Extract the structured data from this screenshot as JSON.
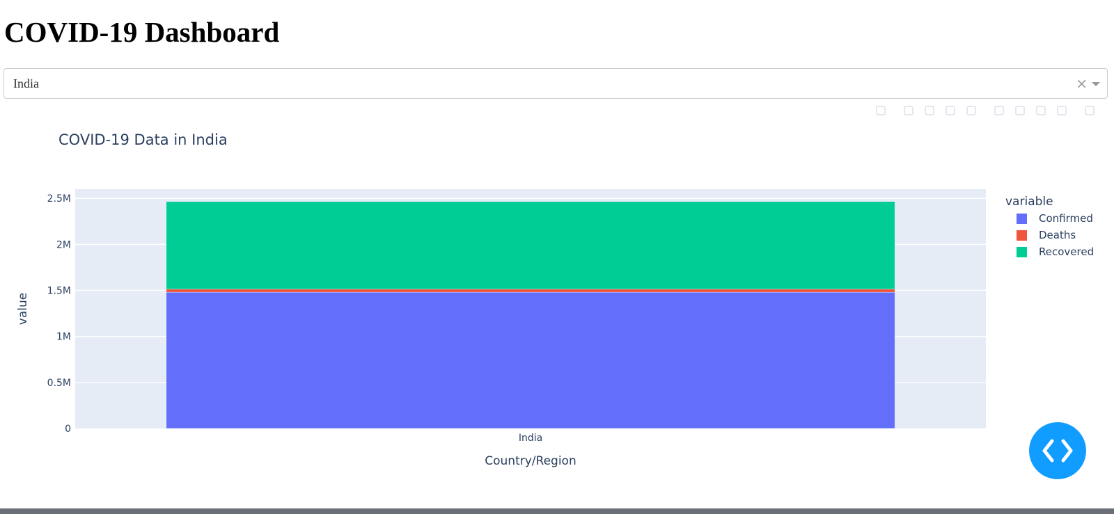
{
  "page": {
    "title": "COVID-19 Dashboard"
  },
  "dropdown": {
    "value": "India",
    "clear_symbol": "×"
  },
  "modebar": {
    "buttons": [
      "camera-icon",
      "zoom-icon",
      "pan-icon",
      "box-select-icon",
      "lasso-select-icon",
      "zoom-in-icon",
      "zoom-out-icon",
      "autoscale-icon",
      "reset-axes-icon",
      "plotly-logo-icon"
    ]
  },
  "chart_data": {
    "type": "bar",
    "barmode": "stack",
    "title": "COVID-19 Data in India",
    "xlabel": "Country/Region",
    "ylabel": "value",
    "categories": [
      "India"
    ],
    "ylim": [
      0,
      2600000
    ],
    "yticks": [
      0,
      500000,
      1000000,
      1500000,
      2000000,
      2500000
    ],
    "ytick_labels": [
      "0",
      "0.5M",
      "1M",
      "1.5M",
      "2M",
      "2.5M"
    ],
    "legend_title": "variable",
    "legend_position": "right",
    "grid": true,
    "series": [
      {
        "name": "Confirmed",
        "color": "#636efa",
        "values": [
          1480000
        ]
      },
      {
        "name": "Deaths",
        "color": "#ef553b",
        "values": [
          33400
        ]
      },
      {
        "name": "Recovered",
        "color": "#00cc96",
        "values": [
          952000
        ]
      }
    ]
  },
  "fab": {
    "icon": "code-brackets-icon",
    "color": "#119dff"
  }
}
